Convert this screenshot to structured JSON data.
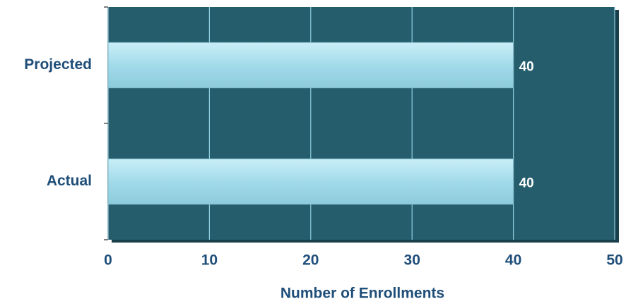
{
  "chart_data": {
    "type": "hbar",
    "x_label": "Number of Enrollments",
    "categories": [
      "Projected",
      "Actual"
    ],
    "values": [
      40,
      40
    ],
    "color": "#a3dbea",
    "xlim": [
      0,
      50
    ],
    "xticks": [
      0,
      10,
      20,
      30,
      40,
      50
    ],
    "grid": true
  }
}
